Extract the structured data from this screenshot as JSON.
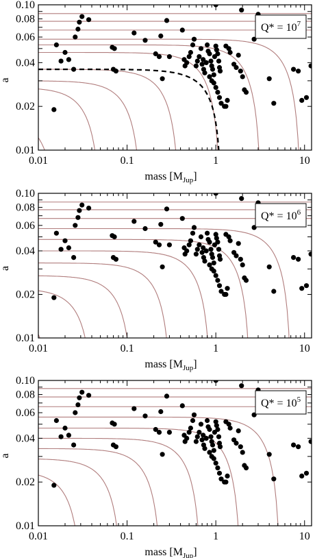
{
  "chart_data": [
    {
      "type": "scatter",
      "annotation": {
        "base": "Q* = 10",
        "exp": "7"
      },
      "xlabel": {
        "prefix": "mass  [M",
        "sub": "Jup",
        "suffix": "]"
      },
      "ylabel": "a",
      "xscale": "log",
      "yscale": "log",
      "xlim": [
        0.01,
        12
      ],
      "ylim": [
        0.01,
        0.1
      ],
      "x_ticks": [
        {
          "v": 0.01,
          "label": "0.01"
        },
        {
          "v": 0.1,
          "label": "0.1"
        },
        {
          "v": 1,
          "label": "1"
        },
        {
          "v": 10,
          "label": "10"
        }
      ],
      "y_ticks": [
        {
          "v": 0.01,
          "label": "0.01"
        },
        {
          "v": 0.02,
          "label": "0.02"
        },
        {
          "v": 0.04,
          "label": "0.04"
        },
        {
          "v": 0.06,
          "label": "0.06"
        },
        {
          "v": 0.08,
          "label": "0.08"
        },
        {
          "v": 0.1,
          "label": "0.10"
        }
      ],
      "curves": {
        "color": "#b07c7c",
        "asymptotes": [
          0.017,
          0.052,
          0.15,
          0.4,
          1.15,
          3.3,
          9.2
        ],
        "levels": [
          0.017,
          0.027,
          0.03,
          0.036,
          0.047,
          0.053,
          0.058,
          0.067,
          0.077,
          0.087
        ]
      },
      "dashed_boundary": {
        "asymptote": 1.15,
        "level": 0.036
      },
      "points": [
        [
          0.015,
          0.019
        ],
        [
          0.016,
          0.053
        ],
        [
          0.018,
          0.041
        ],
        [
          0.02,
          0.047
        ],
        [
          0.022,
          0.042
        ],
        [
          0.025,
          0.036
        ],
        [
          0.026,
          0.06
        ],
        [
          0.028,
          0.068
        ],
        [
          0.029,
          0.076
        ],
        [
          0.031,
          0.083
        ],
        [
          0.037,
          0.079
        ],
        [
          0.068,
          0.051
        ],
        [
          0.072,
          0.05
        ],
        [
          0.07,
          0.036
        ],
        [
          0.075,
          0.035
        ],
        [
          0.12,
          0.064
        ],
        [
          0.16,
          0.057
        ],
        [
          0.21,
          0.046
        ],
        [
          0.23,
          0.044
        ],
        [
          0.24,
          0.061
        ],
        [
          0.3,
          0.044
        ],
        [
          0.28,
          0.078
        ],
        [
          0.25,
          0.031
        ],
        [
          0.42,
          0.067
        ],
        [
          0.44,
          0.042
        ],
        [
          0.45,
          0.038
        ],
        [
          0.47,
          0.04
        ],
        [
          0.5,
          0.044
        ],
        [
          0.52,
          0.047
        ],
        [
          0.55,
          0.053
        ],
        [
          0.57,
          0.058
        ],
        [
          0.6,
          0.038
        ],
        [
          0.62,
          0.041
        ],
        [
          0.65,
          0.044
        ],
        [
          0.68,
          0.05
        ],
        [
          0.7,
          0.039
        ],
        [
          0.72,
          0.042
        ],
        [
          0.73,
          0.036
        ],
        [
          0.75,
          0.034
        ],
        [
          0.78,
          0.04
        ],
        [
          0.8,
          0.053
        ],
        [
          0.82,
          0.048
        ],
        [
          0.85,
          0.046
        ],
        [
          0.88,
          0.041
        ],
        [
          0.9,
          0.038
        ],
        [
          0.92,
          0.036
        ],
        [
          0.95,
          0.033
        ],
        [
          0.97,
          0.044
        ],
        [
          1.0,
          0.052
        ],
        [
          1.02,
          0.049
        ],
        [
          1.05,
          0.046
        ],
        [
          1.08,
          0.041
        ],
        [
          1.1,
          0.037
        ],
        [
          1.12,
          0.035
        ],
        [
          1.0,
          0.1
        ],
        [
          0.85,
          0.032
        ],
        [
          0.9,
          0.03
        ],
        [
          0.95,
          0.029
        ],
        [
          1.0,
          0.027
        ],
        [
          1.05,
          0.025
        ],
        [
          1.1,
          0.023
        ],
        [
          1.15,
          0.021
        ],
        [
          1.25,
          0.02
        ],
        [
          1.3,
          0.02
        ],
        [
          1.35,
          0.022
        ],
        [
          1.3,
          0.052
        ],
        [
          1.4,
          0.05
        ],
        [
          1.45,
          0.047
        ],
        [
          1.6,
          0.039
        ],
        [
          1.7,
          0.037
        ],
        [
          1.9,
          0.035
        ],
        [
          2.0,
          0.032
        ],
        [
          2.1,
          0.026
        ],
        [
          2.2,
          0.025
        ],
        [
          1.8,
          0.045
        ],
        [
          2.7,
          0.058
        ],
        [
          1.95,
          0.092
        ],
        [
          3.0,
          0.086
        ],
        [
          4.0,
          0.031
        ],
        [
          4.5,
          0.021
        ],
        [
          7.5,
          0.036
        ],
        [
          8.5,
          0.035
        ],
        [
          9.3,
          0.022
        ],
        [
          10.5,
          0.023
        ],
        [
          11.8,
          0.038
        ]
      ]
    },
    {
      "type": "scatter",
      "annotation": {
        "base": "Q* = 10",
        "exp": "6"
      },
      "xlabel": {
        "prefix": "mass  [M",
        "sub": "Jup",
        "suffix": "]"
      },
      "ylabel": "a",
      "xscale": "log",
      "yscale": "log",
      "xlim": [
        0.01,
        12
      ],
      "ylim": [
        0.01,
        0.1
      ],
      "x_ticks": [
        {
          "v": 0.01,
          "label": "0.01"
        },
        {
          "v": 0.1,
          "label": "0.1"
        },
        {
          "v": 1,
          "label": "1"
        },
        {
          "v": 10,
          "label": "10"
        }
      ],
      "y_ticks": [
        {
          "v": 0.01,
          "label": "0.01"
        },
        {
          "v": 0.02,
          "label": "0.02"
        },
        {
          "v": 0.04,
          "label": "0.04"
        },
        {
          "v": 0.06,
          "label": "0.06"
        },
        {
          "v": 0.08,
          "label": "0.08"
        },
        {
          "v": 0.1,
          "label": "0.10"
        }
      ],
      "curves": {
        "color": "#b07c7c",
        "asymptotes": [
          0.015,
          0.043,
          0.12,
          0.32,
          0.9,
          2.5,
          7.2
        ],
        "levels": [
          0.017,
          0.022,
          0.027,
          0.033,
          0.04,
          0.048,
          0.057,
          0.067,
          0.077,
          0.087
        ]
      },
      "points": [
        [
          0.015,
          0.019
        ],
        [
          0.016,
          0.053
        ],
        [
          0.018,
          0.041
        ],
        [
          0.02,
          0.047
        ],
        [
          0.022,
          0.042
        ],
        [
          0.025,
          0.036
        ],
        [
          0.026,
          0.06
        ],
        [
          0.028,
          0.068
        ],
        [
          0.029,
          0.076
        ],
        [
          0.031,
          0.083
        ],
        [
          0.037,
          0.079
        ],
        [
          0.068,
          0.051
        ],
        [
          0.072,
          0.05
        ],
        [
          0.07,
          0.036
        ],
        [
          0.075,
          0.035
        ],
        [
          0.12,
          0.064
        ],
        [
          0.16,
          0.057
        ],
        [
          0.21,
          0.046
        ],
        [
          0.23,
          0.044
        ],
        [
          0.24,
          0.061
        ],
        [
          0.3,
          0.044
        ],
        [
          0.28,
          0.078
        ],
        [
          0.25,
          0.031
        ],
        [
          0.42,
          0.067
        ],
        [
          0.44,
          0.042
        ],
        [
          0.45,
          0.038
        ],
        [
          0.47,
          0.04
        ],
        [
          0.5,
          0.044
        ],
        [
          0.52,
          0.047
        ],
        [
          0.55,
          0.053
        ],
        [
          0.57,
          0.058
        ],
        [
          0.6,
          0.038
        ],
        [
          0.62,
          0.041
        ],
        [
          0.65,
          0.044
        ],
        [
          0.68,
          0.05
        ],
        [
          0.7,
          0.039
        ],
        [
          0.72,
          0.042
        ],
        [
          0.73,
          0.036
        ],
        [
          0.75,
          0.034
        ],
        [
          0.78,
          0.04
        ],
        [
          0.8,
          0.053
        ],
        [
          0.82,
          0.048
        ],
        [
          0.85,
          0.046
        ],
        [
          0.88,
          0.041
        ],
        [
          0.9,
          0.038
        ],
        [
          0.92,
          0.036
        ],
        [
          0.95,
          0.033
        ],
        [
          0.97,
          0.044
        ],
        [
          1.0,
          0.052
        ],
        [
          1.02,
          0.049
        ],
        [
          1.05,
          0.046
        ],
        [
          1.08,
          0.041
        ],
        [
          1.1,
          0.037
        ],
        [
          1.12,
          0.035
        ],
        [
          1.0,
          0.1
        ],
        [
          0.85,
          0.032
        ],
        [
          0.9,
          0.03
        ],
        [
          0.95,
          0.029
        ],
        [
          1.0,
          0.027
        ],
        [
          1.05,
          0.025
        ],
        [
          1.1,
          0.023
        ],
        [
          1.15,
          0.021
        ],
        [
          1.25,
          0.02
        ],
        [
          1.3,
          0.02
        ],
        [
          1.35,
          0.022
        ],
        [
          1.3,
          0.052
        ],
        [
          1.4,
          0.05
        ],
        [
          1.45,
          0.047
        ],
        [
          1.6,
          0.039
        ],
        [
          1.7,
          0.037
        ],
        [
          1.9,
          0.035
        ],
        [
          2.0,
          0.032
        ],
        [
          2.1,
          0.026
        ],
        [
          2.2,
          0.025
        ],
        [
          1.8,
          0.045
        ],
        [
          2.7,
          0.058
        ],
        [
          1.95,
          0.092
        ],
        [
          3.0,
          0.086
        ],
        [
          4.0,
          0.031
        ],
        [
          4.5,
          0.021
        ],
        [
          7.5,
          0.036
        ],
        [
          8.5,
          0.035
        ],
        [
          9.3,
          0.022
        ],
        [
          10.5,
          0.023
        ],
        [
          11.8,
          0.038
        ]
      ]
    },
    {
      "type": "scatter",
      "annotation": {
        "base": "Q* = 10",
        "exp": "5"
      },
      "xlabel": {
        "prefix": "mass  [M",
        "sub": "Jup",
        "suffix": "]"
      },
      "ylabel": "a",
      "xscale": "log",
      "yscale": "log",
      "xlim": [
        0.01,
        12
      ],
      "ylim": [
        0.01,
        0.1
      ],
      "x_ticks": [
        {
          "v": 0.01,
          "label": "0.01"
        },
        {
          "v": 0.1,
          "label": "0.1"
        },
        {
          "v": 1,
          "label": "1"
        },
        {
          "v": 10,
          "label": "10"
        }
      ],
      "y_ticks": [
        {
          "v": 0.01,
          "label": "0.01"
        },
        {
          "v": 0.02,
          "label": "0.02"
        },
        {
          "v": 0.04,
          "label": "0.04"
        },
        {
          "v": 0.06,
          "label": "0.06"
        },
        {
          "v": 0.08,
          "label": "0.08"
        },
        {
          "v": 0.1,
          "label": "0.10"
        }
      ],
      "curves": {
        "color": "#b07c7c",
        "asymptotes": [
          0.011,
          0.032,
          0.09,
          0.25,
          0.7,
          1.95,
          5.4
        ],
        "levels": [
          0.02,
          0.024,
          0.029,
          0.034,
          0.04,
          0.047,
          0.056,
          0.066,
          0.077,
          0.088
        ]
      },
      "points": [
        [
          0.015,
          0.019
        ],
        [
          0.016,
          0.053
        ],
        [
          0.018,
          0.041
        ],
        [
          0.02,
          0.047
        ],
        [
          0.022,
          0.042
        ],
        [
          0.025,
          0.036
        ],
        [
          0.026,
          0.06
        ],
        [
          0.028,
          0.068
        ],
        [
          0.029,
          0.076
        ],
        [
          0.031,
          0.083
        ],
        [
          0.037,
          0.079
        ],
        [
          0.068,
          0.051
        ],
        [
          0.072,
          0.05
        ],
        [
          0.07,
          0.036
        ],
        [
          0.075,
          0.035
        ],
        [
          0.12,
          0.064
        ],
        [
          0.16,
          0.057
        ],
        [
          0.21,
          0.046
        ],
        [
          0.23,
          0.044
        ],
        [
          0.24,
          0.061
        ],
        [
          0.3,
          0.044
        ],
        [
          0.28,
          0.078
        ],
        [
          0.25,
          0.031
        ],
        [
          0.42,
          0.067
        ],
        [
          0.44,
          0.042
        ],
        [
          0.45,
          0.038
        ],
        [
          0.47,
          0.04
        ],
        [
          0.5,
          0.044
        ],
        [
          0.52,
          0.047
        ],
        [
          0.55,
          0.053
        ],
        [
          0.57,
          0.058
        ],
        [
          0.6,
          0.038
        ],
        [
          0.62,
          0.041
        ],
        [
          0.65,
          0.044
        ],
        [
          0.68,
          0.05
        ],
        [
          0.7,
          0.039
        ],
        [
          0.72,
          0.042
        ],
        [
          0.73,
          0.036
        ],
        [
          0.75,
          0.034
        ],
        [
          0.78,
          0.04
        ],
        [
          0.8,
          0.053
        ],
        [
          0.82,
          0.048
        ],
        [
          0.85,
          0.046
        ],
        [
          0.88,
          0.041
        ],
        [
          0.9,
          0.038
        ],
        [
          0.92,
          0.036
        ],
        [
          0.95,
          0.033
        ],
        [
          0.97,
          0.044
        ],
        [
          1.0,
          0.052
        ],
        [
          1.02,
          0.049
        ],
        [
          1.05,
          0.046
        ],
        [
          1.08,
          0.041
        ],
        [
          1.1,
          0.037
        ],
        [
          1.12,
          0.035
        ],
        [
          1.0,
          0.1
        ],
        [
          0.85,
          0.032
        ],
        [
          0.9,
          0.03
        ],
        [
          0.95,
          0.029
        ],
        [
          1.0,
          0.027
        ],
        [
          1.05,
          0.025
        ],
        [
          1.1,
          0.023
        ],
        [
          1.15,
          0.021
        ],
        [
          1.25,
          0.02
        ],
        [
          1.3,
          0.02
        ],
        [
          1.35,
          0.022
        ],
        [
          1.3,
          0.052
        ],
        [
          1.4,
          0.05
        ],
        [
          1.45,
          0.047
        ],
        [
          1.6,
          0.039
        ],
        [
          1.7,
          0.037
        ],
        [
          1.9,
          0.035
        ],
        [
          2.0,
          0.032
        ],
        [
          2.1,
          0.026
        ],
        [
          2.2,
          0.025
        ],
        [
          1.8,
          0.045
        ],
        [
          2.7,
          0.058
        ],
        [
          1.95,
          0.092
        ],
        [
          3.0,
          0.086
        ],
        [
          4.0,
          0.031
        ],
        [
          4.5,
          0.021
        ],
        [
          7.5,
          0.036
        ],
        [
          8.5,
          0.035
        ],
        [
          9.3,
          0.022
        ],
        [
          10.5,
          0.023
        ],
        [
          11.8,
          0.038
        ]
      ]
    }
  ]
}
